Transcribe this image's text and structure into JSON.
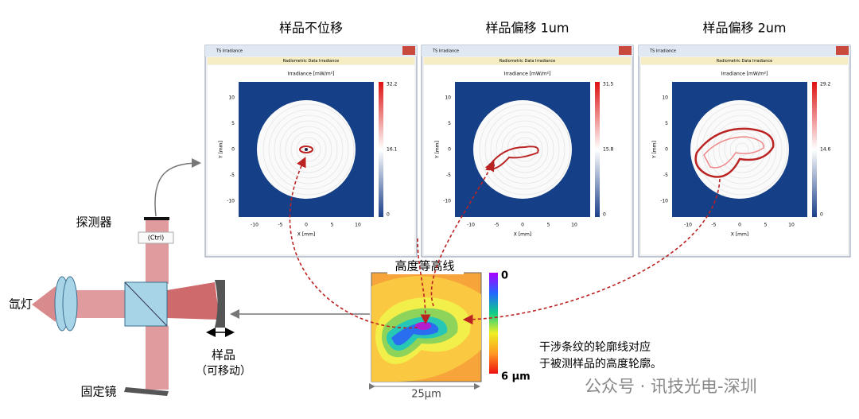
{
  "panels": [
    {
      "title": "样品不位移",
      "window_title": "TS Irradiance",
      "header": "Radiometric Data Irradiance",
      "plot_title": "Irradiance [mW/m²]",
      "colorbar": [
        "32.2",
        "16.1",
        "0"
      ]
    },
    {
      "title": "样品偏移 1um",
      "window_title": "TS Irradiance",
      "header": "Radiometric Data Irradiance",
      "plot_title": "Irradiance [mW/m²]",
      "colorbar": [
        "31.5",
        "15.8",
        "0"
      ]
    },
    {
      "title": "样品偏移 2um",
      "window_title": "TS Irradiance",
      "header": "Radiometric Data Irradiance",
      "plot_title": "Irradiance [mW/m²]",
      "colorbar": [
        "29.2",
        "14.6",
        "0"
      ]
    }
  ],
  "axes": {
    "x_label": "X [mm]",
    "y_label": "Y [mm]",
    "x_ticks": [
      "-10",
      "-5",
      "0",
      "5",
      "10"
    ],
    "y_ticks": [
      "10",
      "5",
      "0",
      "-5",
      "-10"
    ]
  },
  "setup": {
    "detector": "探测器",
    "lamp": "氙灯",
    "sample": "样品",
    "sample_note": "（可移动）",
    "fixed_mirror": "固定镜",
    "paste_hint": "(Ctrl)"
  },
  "contour": {
    "title": "高度等高线",
    "scale_top": "0",
    "scale_bottom": "6 μm",
    "width_label": "25μm"
  },
  "caption": [
    "干涉条纹的轮廓线对应",
    "于被测样品的高度轮廓。"
  ],
  "watermark": "公众号 · 讯技光电-深圳"
}
